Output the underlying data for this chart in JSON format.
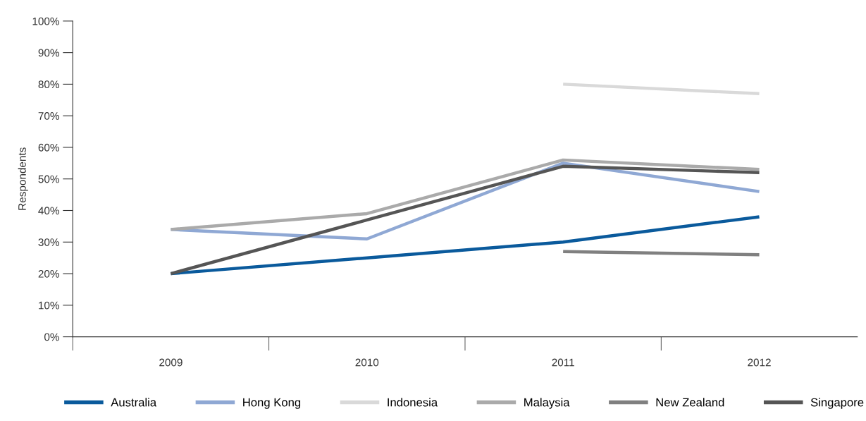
{
  "chart_data": {
    "type": "line",
    "ylabel": "Respondents",
    "categories": [
      "2009",
      "2010",
      "2011",
      "2012"
    ],
    "series": [
      {
        "name": "Australia",
        "color": "#0a5a9c",
        "values": [
          20,
          25,
          30,
          38
        ]
      },
      {
        "name": "Hong Kong",
        "color": "#8fa8d4",
        "values": [
          34,
          31,
          55,
          46
        ]
      },
      {
        "name": "Indonesia",
        "color": "#d9d9d9",
        "values": [
          null,
          null,
          80,
          77
        ]
      },
      {
        "name": "Malaysia",
        "color": "#aaaaaa",
        "values": [
          34,
          39,
          56,
          53
        ]
      },
      {
        "name": "New Zealand",
        "color": "#808080",
        "values": [
          null,
          null,
          27,
          26
        ]
      },
      {
        "name": "Singapore",
        "color": "#555555",
        "values": [
          20,
          37,
          54,
          52
        ]
      }
    ],
    "ylim": [
      0,
      100
    ],
    "yticks": [
      {
        "value": 0,
        "label": "0%"
      },
      {
        "value": 10,
        "label": "10%"
      },
      {
        "value": 20,
        "label": "20%"
      },
      {
        "value": 30,
        "label": "30%"
      },
      {
        "value": 40,
        "label": "40%"
      },
      {
        "value": 50,
        "label": "50%"
      },
      {
        "value": 60,
        "label": "60%"
      },
      {
        "value": 70,
        "label": "70%"
      },
      {
        "value": 80,
        "label": "80%"
      },
      {
        "value": 90,
        "label": "90%"
      },
      {
        "value": 100,
        "label": "100%"
      }
    ],
    "grid": false,
    "legend": "bottom",
    "marker": "none",
    "line_style": "solid"
  }
}
